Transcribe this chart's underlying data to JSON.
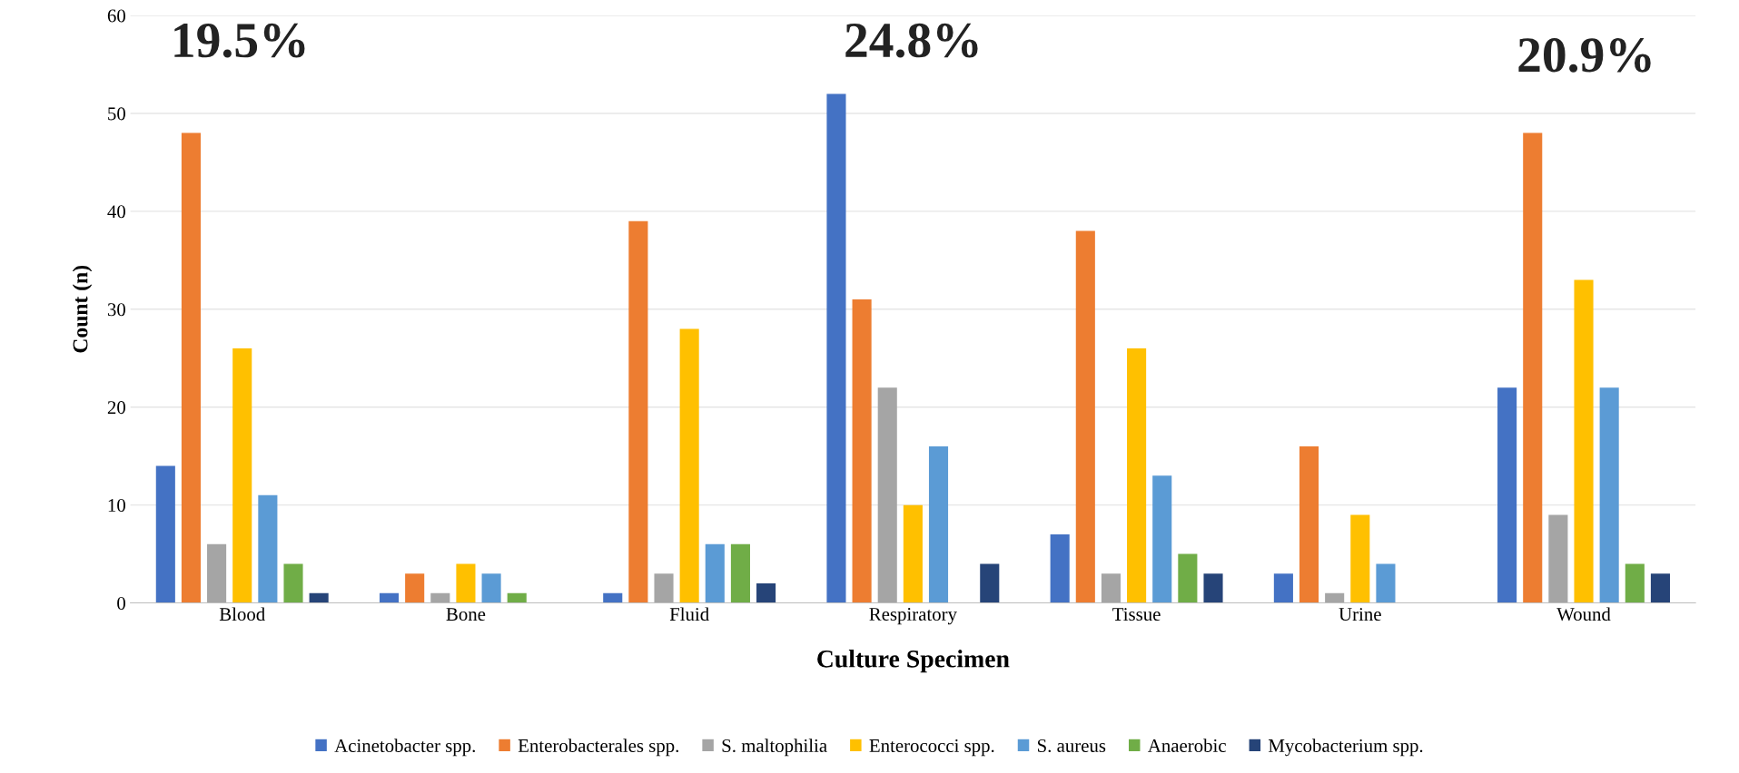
{
  "chart_data": {
    "type": "bar",
    "xlabel": "Culture Specimen",
    "ylabel": "Count (n)",
    "categories": [
      "Blood",
      "Bone",
      "Fluid",
      "Respiratory",
      "Tissue",
      "Urine",
      "Wound"
    ],
    "series": [
      {
        "name": "Acinetobacter spp.",
        "color": "#4472c4",
        "values": [
          14,
          1,
          1,
          52,
          7,
          3,
          22
        ]
      },
      {
        "name": "Enterobacterales spp.",
        "color": "#ed7d31",
        "values": [
          48,
          3,
          39,
          31,
          38,
          16,
          48
        ]
      },
      {
        "name": "S. maltophilia",
        "color": "#a5a5a5",
        "values": [
          6,
          1,
          3,
          22,
          3,
          1,
          9
        ]
      },
      {
        "name": "Enterococci spp.",
        "color": "#ffc000",
        "values": [
          26,
          4,
          28,
          10,
          26,
          9,
          33
        ]
      },
      {
        "name": "S. aureus",
        "color": "#5b9bd5",
        "values": [
          11,
          3,
          6,
          16,
          13,
          4,
          22
        ]
      },
      {
        "name": "Anaerobic",
        "color": "#70ad47",
        "values": [
          4,
          1,
          6,
          0,
          5,
          0,
          4
        ]
      },
      {
        "name": "Mycobacterium spp.",
        "color": "#264478",
        "values": [
          1,
          0,
          2,
          4,
          3,
          0,
          3
        ]
      }
    ],
    "ylim": [
      0,
      60
    ],
    "yticks": [
      0,
      10,
      20,
      30,
      40,
      50,
      60
    ],
    "grid": "y",
    "legend": "bottom",
    "annotations": [
      "19.5%",
      "24.8%",
      "20.9%"
    ]
  }
}
